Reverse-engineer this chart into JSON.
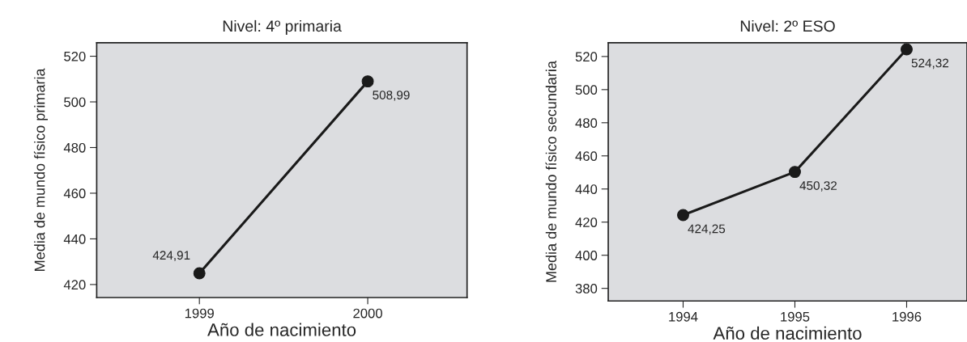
{
  "chart_data": [
    {
      "type": "line",
      "title": "Nivel: 4º primaria",
      "xlabel": "Año de nacimiento",
      "ylabel": "Media de mundo físico primaria",
      "x": [
        1999,
        2000
      ],
      "values": [
        424.91,
        508.99
      ],
      "value_labels": [
        "424,91",
        "508,99"
      ],
      "color": "#1a1a1a",
      "marker": "circle",
      "line_style": "solid",
      "xlim": [
        1998.39,
        2000.59
      ],
      "xticks": [
        1999,
        2000
      ],
      "ylim": [
        414.3,
        525.9
      ],
      "yticks": [
        420,
        440,
        460,
        480,
        500,
        520
      ],
      "grid": false
    },
    {
      "type": "line",
      "title": "Nivel: 2º ESO",
      "xlabel": "Año de nacimiento",
      "ylabel": "Media de mundo físico secundaria",
      "x": [
        1994,
        1995,
        1996
      ],
      "values": [
        424.25,
        450.32,
        524.32
      ],
      "value_labels": [
        "424,25",
        "450,32",
        "524,32"
      ],
      "color": "#1a1a1a",
      "marker": "circle",
      "line_style": "solid",
      "xlim": [
        1993.33,
        1996.54
      ],
      "xticks": [
        1994,
        1995,
        1996
      ],
      "ylim": [
        372.4,
        528.3
      ],
      "yticks": [
        380,
        400,
        420,
        440,
        460,
        480,
        500,
        520
      ],
      "grid": false
    }
  ]
}
